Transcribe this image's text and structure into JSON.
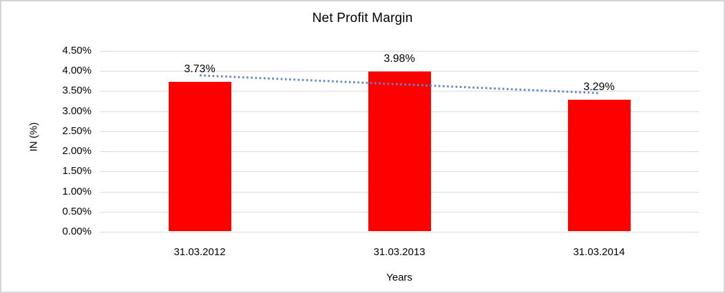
{
  "chart_data": {
    "type": "bar",
    "title": "Net Profit Margin",
    "categories": [
      "31.03.2012",
      "31.03.2013",
      "31.03.2014"
    ],
    "values": [
      3.73,
      3.98,
      3.29
    ],
    "data_labels": [
      "3.73%",
      "3.98%",
      "3.29%"
    ],
    "xlabel": "Years",
    "ylabel": "IN (%)",
    "ylim": [
      0,
      4.5
    ],
    "ytick_step": 0.5,
    "ytick_labels": [
      "0.00%",
      "0.50%",
      "1.00%",
      "1.50%",
      "2.00%",
      "2.50%",
      "3.00%",
      "3.50%",
      "4.00%",
      "4.50%"
    ],
    "grid": true,
    "legend": "none",
    "bar_color": "#ff0000",
    "trendline": {
      "type": "linear",
      "style": "dotted",
      "color": "#5b8ac6",
      "start_value": 3.89,
      "end_value": 3.45
    }
  },
  "colors": {
    "background": "#ffffff",
    "frame_border": "#d5d5d5",
    "gridline": "#d9d9d9",
    "text": "#000000",
    "bar": "#ff0000",
    "trendline": "#5b8ac6"
  }
}
